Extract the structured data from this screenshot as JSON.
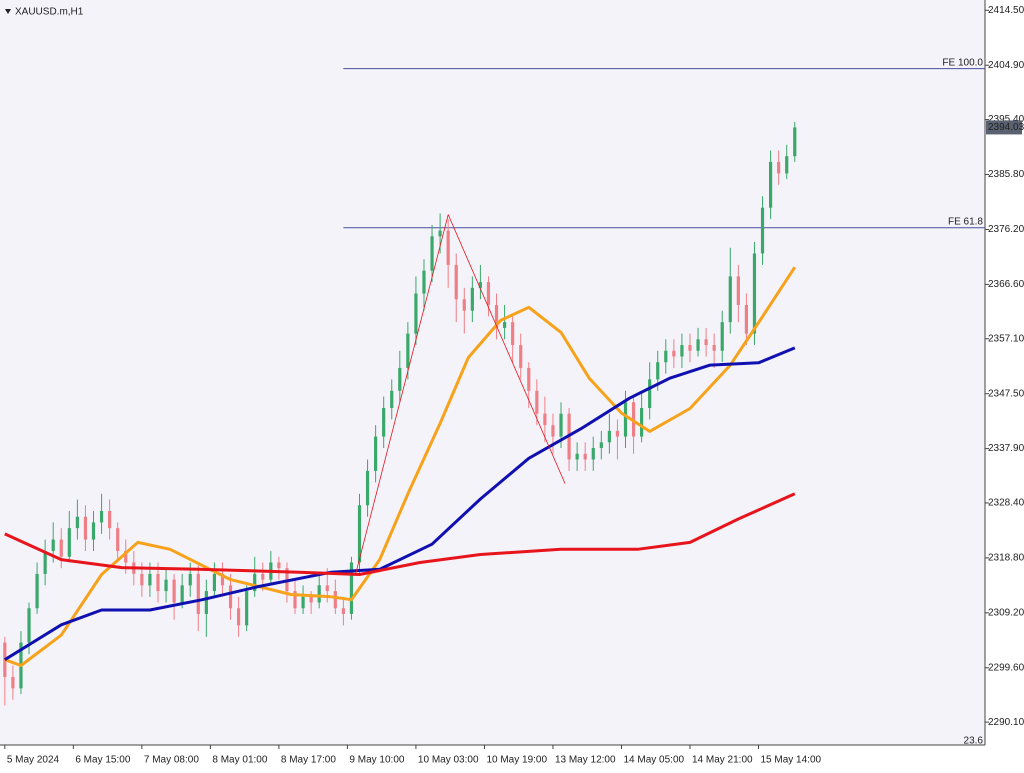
{
  "chart_data": {
    "type": "candlestick",
    "symbol": "XAUUSD.m,H1",
    "colors": {
      "up": "#3aa86b",
      "down": "#ef7f86",
      "background": "#f4f3fa"
    },
    "x": [
      0,
      2,
      4,
      6,
      8,
      10,
      12,
      14,
      16,
      18,
      20,
      22,
      24,
      26,
      28,
      30,
      32,
      34,
      36,
      38,
      40,
      42,
      44,
      46,
      48,
      50,
      52,
      54,
      56,
      58,
      60,
      62,
      64,
      66,
      68,
      70,
      72,
      74,
      76,
      78,
      80,
      82,
      84,
      86,
      88,
      90,
      92,
      94,
      96,
      98,
      100,
      102,
      104,
      106,
      108,
      110,
      112,
      114,
      116,
      118,
      120,
      122,
      124,
      126,
      128,
      130,
      132,
      134,
      136,
      138,
      140,
      142,
      144,
      146,
      148,
      150,
      152,
      154,
      156,
      158,
      160,
      162,
      164,
      166,
      168,
      170,
      172,
      174,
      176,
      178,
      180,
      182,
      184,
      186,
      188,
      190,
      192,
      194,
      196
    ],
    "ohlc": [
      [
        2304,
        2305,
        2293,
        2298
      ],
      [
        2298,
        2300,
        2294,
        2296
      ],
      [
        2296,
        2306,
        2295,
        2304
      ],
      [
        2304,
        2311,
        2302,
        2310
      ],
      [
        2310,
        2318,
        2309,
        2316
      ],
      [
        2316,
        2322,
        2314,
        2320
      ],
      [
        2320,
        2325,
        2318,
        2322
      ],
      [
        2322,
        2324,
        2317,
        2319
      ],
      [
        2319,
        2327,
        2318,
        2324
      ],
      [
        2324,
        2329,
        2322,
        2326
      ],
      [
        2326,
        2328,
        2320,
        2322
      ],
      [
        2322,
        2327,
        2320,
        2325
      ],
      [
        2325,
        2330,
        2323,
        2327
      ],
      [
        2327,
        2329,
        2322,
        2324
      ],
      [
        2324,
        2325,
        2318,
        2320
      ],
      [
        2320,
        2322,
        2316,
        2318
      ],
      [
        2318,
        2320,
        2314,
        2316
      ],
      [
        2316,
        2318,
        2312,
        2314
      ],
      [
        2314,
        2318,
        2312,
        2316
      ],
      [
        2316,
        2318,
        2311,
        2313
      ],
      [
        2313,
        2317,
        2311,
        2315
      ],
      [
        2315,
        2316,
        2308,
        2311
      ],
      [
        2311,
        2316,
        2310,
        2314
      ],
      [
        2314,
        2318,
        2312,
        2316
      ],
      [
        2316,
        2318,
        2306,
        2309
      ],
      [
        2309,
        2315,
        2305,
        2313
      ],
      [
        2313,
        2318,
        2312,
        2316
      ],
      [
        2316,
        2318,
        2312,
        2314
      ],
      [
        2314,
        2316,
        2308,
        2310
      ],
      [
        2310,
        2312,
        2305,
        2307
      ],
      [
        2307,
        2314,
        2306,
        2313
      ],
      [
        2313,
        2319,
        2312,
        2316
      ],
      [
        2316,
        2318,
        2313,
        2315
      ],
      [
        2315,
        2320,
        2314,
        2318
      ],
      [
        2318,
        2319,
        2315,
        2317
      ],
      [
        2317,
        2318,
        2311,
        2313
      ],
      [
        2313,
        2315,
        2309,
        2310
      ],
      [
        2310,
        2314,
        2309,
        2312
      ],
      [
        2312,
        2313,
        2309,
        2311
      ],
      [
        2311,
        2316,
        2310,
        2314
      ],
      [
        2314,
        2317,
        2311,
        2313
      ],
      [
        2313,
        2315,
        2309,
        2310
      ],
      [
        2310,
        2312,
        2307,
        2309
      ],
      [
        2309,
        2319,
        2308,
        2318
      ],
      [
        2318,
        2330,
        2316,
        2328
      ],
      [
        2328,
        2336,
        2326,
        2334
      ],
      [
        2334,
        2342,
        2332,
        2340
      ],
      [
        2340,
        2347,
        2338,
        2345
      ],
      [
        2345,
        2350,
        2343,
        2348
      ],
      [
        2348,
        2355,
        2346,
        2352
      ],
      [
        2352,
        2360,
        2350,
        2358
      ],
      [
        2358,
        2368,
        2356,
        2365
      ],
      [
        2365,
        2371,
        2362,
        2369
      ],
      [
        2369,
        2377,
        2367,
        2375
      ],
      [
        2375,
        2379,
        2372,
        2376
      ],
      [
        2376,
        2378,
        2366,
        2370
      ],
      [
        2370,
        2372,
        2360,
        2364
      ],
      [
        2364,
        2366,
        2358,
        2362
      ],
      [
        2362,
        2368,
        2360,
        2366
      ],
      [
        2366,
        2370,
        2364,
        2367
      ],
      [
        2367,
        2368,
        2361,
        2363
      ],
      [
        2363,
        2365,
        2357,
        2359
      ],
      [
        2359,
        2363,
        2357,
        2360
      ],
      [
        2360,
        2361,
        2353,
        2356
      ],
      [
        2356,
        2358,
        2350,
        2352
      ],
      [
        2352,
        2353,
        2345,
        2348
      ],
      [
        2348,
        2350,
        2342,
        2344
      ],
      [
        2344,
        2347,
        2339,
        2342
      ],
      [
        2342,
        2344,
        2337,
        2340
      ],
      [
        2340,
        2346,
        2338,
        2344
      ],
      [
        2344,
        2345,
        2334,
        2336
      ],
      [
        2336,
        2339,
        2334,
        2337
      ],
      [
        2337,
        2339,
        2334,
        2336
      ],
      [
        2336,
        2340,
        2334,
        2338
      ],
      [
        2338,
        2341,
        2336,
        2339
      ],
      [
        2339,
        2344,
        2337,
        2341
      ],
      [
        2341,
        2343,
        2336,
        2340
      ],
      [
        2340,
        2348,
        2338,
        2346
      ],
      [
        2346,
        2347,
        2337,
        2340
      ],
      [
        2340,
        2348,
        2339,
        2345
      ],
      [
        2345,
        2353,
        2343,
        2350
      ],
      [
        2350,
        2355,
        2348,
        2353
      ],
      [
        2353,
        2357,
        2351,
        2355
      ],
      [
        2355,
        2357,
        2352,
        2354
      ],
      [
        2354,
        2358,
        2352,
        2356
      ],
      [
        2356,
        2358,
        2353,
        2355
      ],
      [
        2355,
        2359,
        2354,
        2357
      ],
      [
        2357,
        2359,
        2354,
        2356
      ],
      [
        2356,
        2358,
        2352,
        2355
      ],
      [
        2355,
        2362,
        2353,
        2360
      ],
      [
        2360,
        2373,
        2358,
        2368
      ],
      [
        2368,
        2370,
        2360,
        2363
      ],
      [
        2363,
        2365,
        2356,
        2358
      ],
      [
        2358,
        2374,
        2356,
        2372
      ],
      [
        2372,
        2382,
        2370,
        2380
      ],
      [
        2380,
        2390,
        2378,
        2388
      ],
      [
        2388,
        2390,
        2384,
        2386
      ],
      [
        2386,
        2391,
        2385,
        2389
      ],
      [
        2389,
        2395,
        2388,
        2394.03
      ]
    ],
    "moving_averages": [
      {
        "color": "#f7a21b",
        "x": [
          0,
          4,
          14,
          24,
          33,
          41,
          56,
          71,
          81,
          86,
          93,
          100,
          108,
          115,
          123,
          130,
          138,
          145,
          153,
          160,
          170,
          180,
          187,
          196
        ],
        "values": [
          2301,
          2300,
          2305.3,
          2315.9,
          2321.5,
          2320.3,
          2315,
          2312.4,
          2312,
          2311.5,
          2318.5,
          2330,
          2342.3,
          2353.8,
          2360.3,
          2362.6,
          2358.2,
          2350.2,
          2344.1,
          2340.9,
          2344.9,
          2352.5,
          2359.9,
          2369.6
        ]
      },
      {
        "color": "#1010b0",
        "x": [
          0,
          14,
          24,
          36,
          49,
          63,
          81,
          93,
          106,
          118,
          130,
          143,
          155,
          165,
          175,
          187,
          196
        ],
        "values": [
          2301,
          2307.1,
          2309.7,
          2309.7,
          2311.5,
          2313.8,
          2316.3,
          2316.8,
          2321.2,
          2329.1,
          2336.2,
          2341.4,
          2346.7,
          2350.2,
          2352.5,
          2352.9,
          2355.5
        ]
      },
      {
        "color": "#e8141c",
        "x": [
          0,
          14,
          29,
          48,
          73,
          88,
          103,
          118,
          138,
          157,
          170,
          182,
          196
        ],
        "values": [
          2323,
          2318.5,
          2317.1,
          2316.8,
          2316.3,
          2315.9,
          2318,
          2319.4,
          2320.3,
          2320.3,
          2321.5,
          2325.6,
          2330
        ]
      }
    ],
    "zigzag": {
      "color": "#e8141c",
      "x": [
        87,
        110,
        139
      ],
      "values": [
        2315.9,
        2378.8,
        2331.8
      ]
    },
    "fib_levels": [
      {
        "label": "FE 100.0",
        "value": 2404.3,
        "start": 84
      },
      {
        "label": "FE 61.8",
        "value": 2376.5,
        "start": 84
      }
    ],
    "bottom_label": "23.6",
    "current_price": 2394.03,
    "ylim": [
      2286.1,
      2415.6
    ],
    "xlim": [
      -1.2,
      243.2
    ],
    "yticks": [
      {
        "value": 2414.5,
        "label": "2414.50"
      },
      {
        "value": 2404.9,
        "label": "2404.90"
      },
      {
        "value": 2395.4,
        "label": "2395.40"
      },
      {
        "value": 2385.8,
        "label": "2385.80"
      },
      {
        "value": 2376.2,
        "label": "2376.20"
      },
      {
        "value": 2366.6,
        "label": "2366.60"
      },
      {
        "value": 2357.1,
        "label": "2357.10"
      },
      {
        "value": 2347.5,
        "label": "2347.50"
      },
      {
        "value": 2337.9,
        "label": "2337.90"
      },
      {
        "value": 2328.4,
        "label": "2328.40"
      },
      {
        "value": 2318.8,
        "label": "2318.80"
      },
      {
        "value": 2309.2,
        "label": "2309.20"
      },
      {
        "value": 2299.6,
        "label": "2299.60"
      },
      {
        "value": 2290.1,
        "label": "2290.10"
      }
    ],
    "xticks": [
      {
        "value": 0,
        "label": "5 May 2024"
      },
      {
        "value": 17,
        "label": "6 May 15:00"
      },
      {
        "value": 34,
        "label": "7 May 08:00"
      },
      {
        "value": 51,
        "label": "8 May 01:00"
      },
      {
        "value": 68,
        "label": "8 May 17:00"
      },
      {
        "value": 85,
        "label": "9 May 10:00"
      },
      {
        "value": 102,
        "label": "10 May 03:00"
      },
      {
        "value": 119,
        "label": "10 May 19:00"
      },
      {
        "value": 136,
        "label": "13 May 12:00"
      },
      {
        "value": 153,
        "label": "14 May 05:00"
      },
      {
        "value": 170,
        "label": "14 May 21:00"
      },
      {
        "value": 187,
        "label": "15 May 14:00"
      }
    ]
  }
}
